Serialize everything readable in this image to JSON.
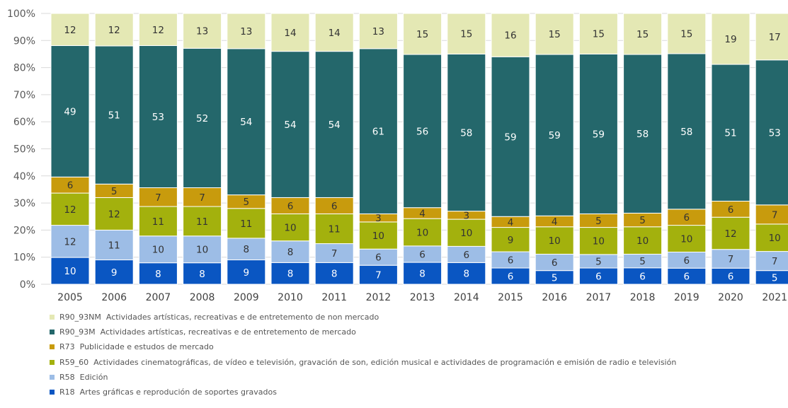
{
  "chart_data": {
    "type": "bar",
    "stacked": true,
    "percent_stacked": true,
    "categories": [
      "2005",
      "2006",
      "2007",
      "2008",
      "2009",
      "2010",
      "2011",
      "2012",
      "2013",
      "2014",
      "2015",
      "2016",
      "2017",
      "2018",
      "2019",
      "2020",
      "2021"
    ],
    "series": [
      {
        "name": "R18 Artes gráficas e reprodución de soportes gravados",
        "code": "R18",
        "label": "Artes gráficas e reprodución de soportes gravados",
        "color": "#0a56c2",
        "label_color": "#ffffff",
        "values": [
          10,
          9,
          8,
          8,
          9,
          8,
          8,
          7,
          8,
          8,
          6,
          5,
          6,
          6,
          6,
          6,
          5
        ]
      },
      {
        "name": "R58 Edición",
        "code": "R58",
        "label": "Edición",
        "color": "#9dbde6",
        "label_color": "#333333",
        "values": [
          12,
          11,
          10,
          10,
          8,
          8,
          7,
          6,
          6,
          6,
          6,
          6,
          5,
          5,
          6,
          7,
          7
        ]
      },
      {
        "name": "R59_60 Actividades cinematográficas, de vídeo e televisión, gravación de son, edición musical e actividades de programación e emisión de radio e televisión",
        "code": "R59_60",
        "label": "Actividades cinematográficas, de vídeo e televisión, gravación de son, edición musical e actividades de programación e emisión de radio e televisión",
        "color": "#a3b10d",
        "label_color": "#333333",
        "values": [
          12,
          12,
          11,
          11,
          11,
          10,
          11,
          10,
          10,
          10,
          9,
          10,
          10,
          10,
          10,
          12,
          10
        ]
      },
      {
        "name": "R73 Publicidade e estudos de mercado",
        "code": "R73",
        "label": "Publicidade e estudos de mercado",
        "color": "#c89b0d",
        "label_color": "#333333",
        "values": [
          6,
          5,
          7,
          7,
          5,
          6,
          6,
          3,
          4,
          3,
          4,
          4,
          5,
          5,
          6,
          6,
          7
        ]
      },
      {
        "name": "R90_93M Actividades artísticas, recreativas e de entretemento de mercado",
        "code": "R90_93M",
        "label": "Actividades artísticas, recreativas e de entretemento de mercado",
        "color": "#24676b",
        "label_color": "#ffffff",
        "values": [
          49,
          51,
          53,
          52,
          54,
          54,
          54,
          61,
          56,
          58,
          59,
          59,
          59,
          58,
          58,
          51,
          53
        ]
      },
      {
        "name": "R90_93NM Actividades artísticas, recreativas e de entretemento de non mercado",
        "code": "R90_93NM",
        "label": "Actividades artísticas, recreativas e de entretemento de non mercado",
        "color": "#e4e8b4",
        "label_color": "#333333",
        "values": [
          12,
          12,
          12,
          13,
          13,
          14,
          14,
          13,
          15,
          15,
          16,
          15,
          15,
          15,
          15,
          19,
          17
        ]
      }
    ],
    "y_ticks": [
      "0%",
      "10%",
      "20%",
      "30%",
      "40%",
      "50%",
      "60%",
      "70%",
      "80%",
      "90%",
      "100%"
    ],
    "ylim": [
      0,
      100
    ],
    "grid": true,
    "legend_position": "bottom",
    "legend_order": [
      "R90_93NM",
      "R90_93M",
      "R73",
      "R59_60",
      "R58",
      "R18"
    ],
    "title": "",
    "xlabel": "",
    "ylabel": ""
  }
}
